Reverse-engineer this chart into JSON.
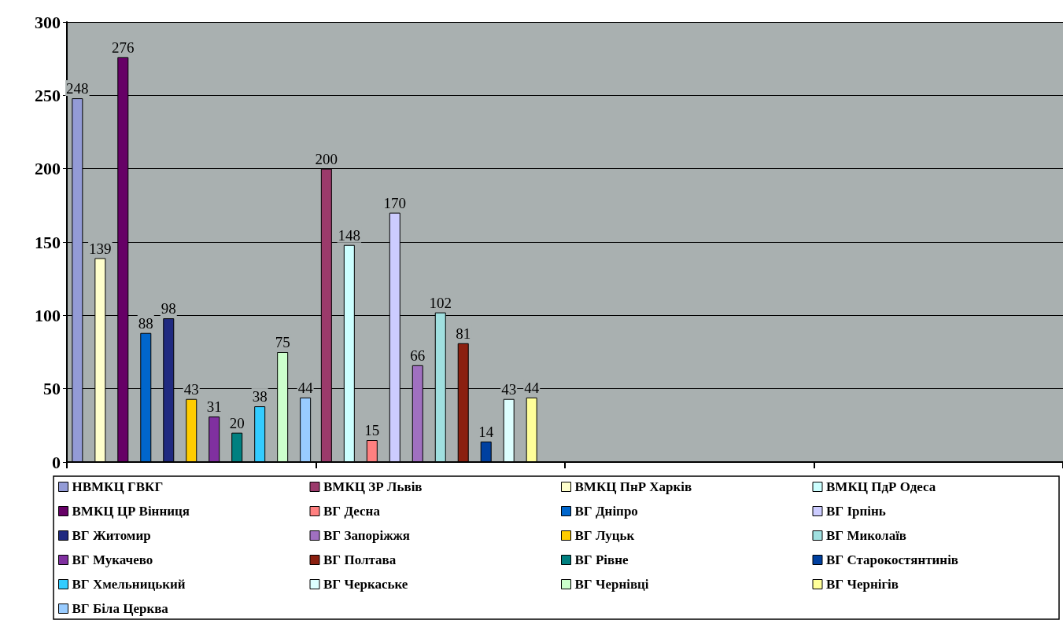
{
  "chart_data": {
    "type": "bar",
    "categories": [
      null,
      null,
      null,
      null
    ],
    "ylim": [
      0,
      300
    ],
    "yticks": [
      0,
      50,
      100,
      150,
      200,
      250,
      300
    ],
    "grid": "y",
    "legend": "bottom",
    "data_labels": true,
    "series": [
      {
        "name": "НВМКЦ ГВКГ",
        "color": "#939bd6",
        "values": [
          248,
          null,
          null,
          null
        ]
      },
      {
        "name": "ВМКЦ ЗР Львів",
        "color": "#9b3a6b",
        "values": [
          null,
          200,
          null,
          null
        ]
      },
      {
        "name": "ВМКЦ ПнР Харків",
        "color": "#ffffcc",
        "values": [
          139,
          null,
          null,
          null
        ]
      },
      {
        "name": "ВМКЦ ПдР Одеса",
        "color": "#ccffff",
        "values": [
          null,
          148,
          null,
          null
        ]
      },
      {
        "name": "ВМКЦ ЦР Вінниця",
        "color": "#660066",
        "values": [
          276,
          null,
          null,
          null
        ]
      },
      {
        "name": "ВГ Десна",
        "color": "#ff8080",
        "values": [
          null,
          15,
          null,
          null
        ]
      },
      {
        "name": "ВГ Дніпро",
        "color": "#0066cc",
        "values": [
          88,
          null,
          null,
          null
        ]
      },
      {
        "name": "ВГ Ірпінь",
        "color": "#ccccff",
        "values": [
          null,
          170,
          null,
          null
        ]
      },
      {
        "name": "ВГ Житомир",
        "color": "#202a80",
        "values": [
          98,
          null,
          null,
          null
        ]
      },
      {
        "name": "ВГ Запоріжжя",
        "color": "#a070c0",
        "values": [
          null,
          66,
          null,
          null
        ]
      },
      {
        "name": "ВГ Луцьк",
        "color": "#ffcc00",
        "values": [
          43,
          null,
          null,
          null
        ]
      },
      {
        "name": "ВГ Миколаїв",
        "color": "#a0e0e0",
        "values": [
          null,
          102,
          null,
          null
        ]
      },
      {
        "name": "ВГ Мукачево",
        "color": "#8030a0",
        "values": [
          31,
          null,
          null,
          null
        ]
      },
      {
        "name": "ВГ Полтава",
        "color": "#8b2010",
        "values": [
          null,
          81,
          null,
          null
        ]
      },
      {
        "name": "ВГ Рівне",
        "color": "#008080",
        "values": [
          20,
          null,
          null,
          null
        ]
      },
      {
        "name": "ВГ Старокостянтинів",
        "color": "#0040a0",
        "values": [
          null,
          14,
          null,
          null
        ]
      },
      {
        "name": "ВГ Хмельницький",
        "color": "#33ccff",
        "values": [
          38,
          null,
          null,
          null
        ]
      },
      {
        "name": "ВГ Черкаське",
        "color": "#ddffff",
        "values": [
          null,
          43,
          null,
          null
        ]
      },
      {
        "name": "ВГ Чернівці",
        "color": "#ccffcc",
        "values": [
          75,
          null,
          null,
          null
        ]
      },
      {
        "name": "ВГ Чернігів",
        "color": "#ffff99",
        "values": [
          null,
          44,
          null,
          null
        ]
      },
      {
        "name": "ВГ Біла Церква",
        "color": "#99ccff",
        "values": [
          44,
          null,
          null,
          null
        ]
      }
    ]
  }
}
